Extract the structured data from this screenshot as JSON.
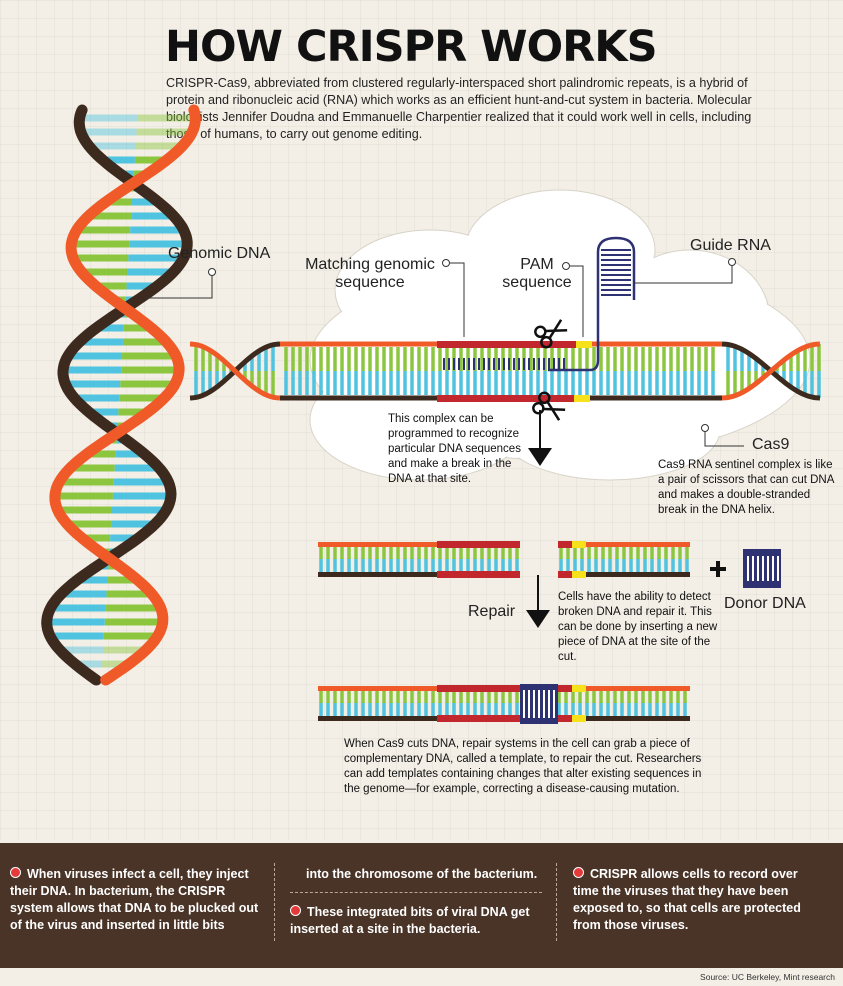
{
  "title": "HOW CRISPR WORKS",
  "intro": "CRISPR-Cas9, abbreviated from clustered regularly-interspaced short palindromic repeats, is a hybrid of protein and ribonucleic acid (RNA) which works as an efficient hunt-and-cut system in bacteria. Molecular biologists Jennifer Doudna and Emmanuelle Charpentier realized that it could work well in cells, including those of humans, to carry out genome editing.",
  "labels": {
    "genomic_dna": "Genomic DNA",
    "matching_line1": "Matching genomic",
    "matching_line2": "sequence",
    "pam_line1": "PAM",
    "pam_line2": "sequence",
    "guide_rna": "Guide RNA",
    "cas9": "Cas9",
    "repair": "Repair",
    "donor_dna": "Donor DNA"
  },
  "notes": {
    "complex": "This complex can be programmed to recognize particular DNA sequences and make a break in the DNA at that site.",
    "cas9": "Cas9 RNA sentinel complex is like a pair of scissors that can cut DNA and makes a double-stranded break in the DNA helix.",
    "repair": "Cells have the ability to detect broken DNA and repair it. This can be done by inserting a new piece of DNA at the site of the cut.",
    "final": "When Cas9 cuts DNA, repair systems in the cell can grab a piece of complementary DNA, called a template, to repair the cut. Researchers can add templates containing changes that alter existing sequences in the genome—for example, correcting a disease-causing mutation."
  },
  "footer": {
    "col1": "When viruses infect a cell, they inject their DNA. In bacterium, the CRISPR system allows that DNA to be plucked out of the virus and inserted in little bits",
    "col2a": "into the chromosome of the bacterium.",
    "col2b": "These integrated bits of viral DNA get inserted at a site in the bacteria.",
    "col3": "CRISPR allows cells to record over time the viruses that they have been exposed to, so that cells are protected from those viruses.",
    "source": "Source: UC Berkeley, Mint research"
  },
  "colors": {
    "backbone_orange": "#f05a28",
    "backbone_brown": "#3d2a1e",
    "base_green": "#8cc63f",
    "base_blue": "#4fc3df",
    "matching_red": "#c1272d",
    "pam_yellow": "#f7e11b",
    "guide_navy": "#2e3172",
    "footer_bg": "#4a3427",
    "bullet_red": "#e43a3a"
  },
  "icons": [
    "scissors-icon",
    "arrow-down-icon",
    "plus-icon",
    "donor-dna-icon",
    "bullet-icon"
  ]
}
